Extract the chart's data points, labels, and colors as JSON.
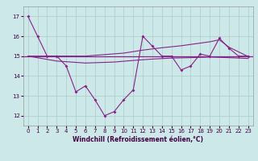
{
  "xlabel": "Windchill (Refroidissement éolien,°C)",
  "x_values": [
    0,
    1,
    2,
    3,
    4,
    5,
    6,
    7,
    8,
    9,
    10,
    11,
    12,
    13,
    14,
    15,
    16,
    17,
    18,
    19,
    20,
    21,
    22,
    23
  ],
  "main_line": [
    17.0,
    16.0,
    15.0,
    15.0,
    14.5,
    13.2,
    13.5,
    12.8,
    12.0,
    12.2,
    12.8,
    13.3,
    16.0,
    15.5,
    15.0,
    15.0,
    14.3,
    14.5,
    15.1,
    15.0,
    15.9,
    15.4,
    15.0,
    15.0
  ],
  "flat_line_y": 15.0,
  "upper_x": [
    0,
    3,
    6,
    10,
    12,
    14,
    16,
    19,
    20,
    21,
    23
  ],
  "upper_y": [
    15.0,
    15.0,
    15.0,
    15.15,
    15.3,
    15.42,
    15.52,
    15.72,
    15.82,
    15.45,
    14.98
  ],
  "lower_x": [
    0,
    3,
    6,
    9,
    11,
    13,
    15,
    17,
    19,
    21,
    23
  ],
  "lower_y": [
    15.0,
    14.75,
    14.65,
    14.7,
    14.78,
    14.85,
    14.9,
    14.92,
    14.95,
    14.92,
    14.88
  ],
  "bg_color": "#cce8e8",
  "grid_color": "#aacccc",
  "line_color": "#882288",
  "ylim": [
    11.5,
    17.5
  ],
  "xlim": [
    -0.5,
    23.5
  ],
  "yticks": [
    12,
    13,
    14,
    15,
    16,
    17
  ],
  "xticks": [
    0,
    1,
    2,
    3,
    4,
    5,
    6,
    7,
    8,
    9,
    10,
    11,
    12,
    13,
    14,
    15,
    16,
    17,
    18,
    19,
    20,
    21,
    22,
    23
  ],
  "tick_color": "#440044",
  "label_fontsize": 5.5,
  "tick_fontsize": 5.0
}
